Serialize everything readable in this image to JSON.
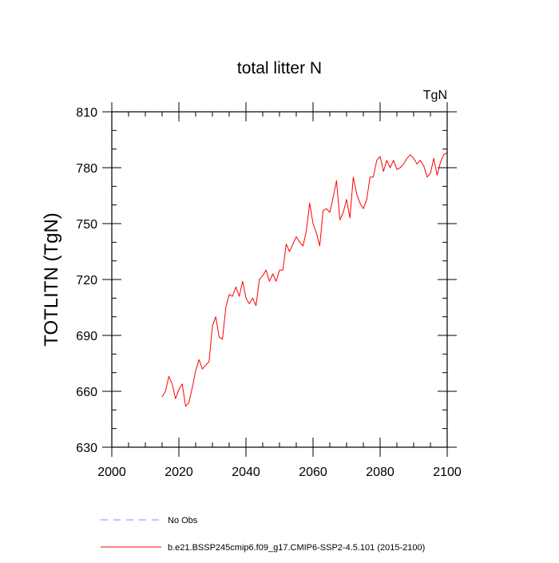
{
  "chart_data": {
    "type": "line",
    "title": "total litter N",
    "units": "TgN",
    "ylabel": "TOTLITN  (TgN)",
    "xlabel": "",
    "xlim": [
      2000,
      2100
    ],
    "ylim": [
      630,
      810
    ],
    "xticks": [
      2000,
      2020,
      2040,
      2060,
      2080,
      2100
    ],
    "yticks": [
      630,
      660,
      690,
      720,
      750,
      780,
      810
    ],
    "x_minor_step": 5,
    "y_minor_step": 10,
    "grid": false,
    "legend_position": "bottom",
    "series": [
      {
        "name": "b.e21.BSSP245cmip6.f09_g17.CMIP6-SSP2-4.5.101 (2015-2100)",
        "color": "#ff0000",
        "style": "solid",
        "x": [
          2015,
          2016,
          2017,
          2018,
          2019,
          2020,
          2021,
          2022,
          2023,
          2024,
          2025,
          2026,
          2027,
          2028,
          2029,
          2030,
          2031,
          2032,
          2033,
          2034,
          2035,
          2036,
          2037,
          2038,
          2039,
          2040,
          2041,
          2042,
          2043,
          2044,
          2045,
          2046,
          2047,
          2048,
          2049,
          2050,
          2051,
          2052,
          2053,
          2054,
          2055,
          2056,
          2057,
          2058,
          2059,
          2060,
          2061,
          2062,
          2063,
          2064,
          2065,
          2066,
          2067,
          2068,
          2069,
          2070,
          2071,
          2072,
          2073,
          2074,
          2075,
          2076,
          2077,
          2078,
          2079,
          2080,
          2081,
          2082,
          2083,
          2084,
          2085,
          2086,
          2087,
          2088,
          2089,
          2090,
          2091,
          2092,
          2093,
          2094,
          2095,
          2096,
          2097,
          2098,
          2099,
          2100
        ],
        "values": [
          657,
          660,
          668,
          664,
          656,
          661,
          664,
          652,
          654,
          662,
          671,
          677,
          672,
          674,
          676,
          695,
          700,
          689,
          688,
          705,
          712,
          711,
          716,
          711,
          719,
          710,
          707,
          710,
          706,
          720,
          722,
          725,
          719,
          723,
          719,
          725,
          725,
          739,
          735,
          739,
          743,
          740,
          738,
          746,
          761,
          750,
          745,
          738,
          757,
          758,
          756,
          764,
          773,
          752,
          756,
          763,
          753,
          775,
          766,
          761,
          758,
          763,
          775,
          775,
          784,
          786,
          778,
          784,
          780,
          784,
          779,
          780,
          782,
          785,
          787,
          785,
          782,
          784,
          781,
          775,
          777,
          785,
          776,
          783,
          787,
          788
        ]
      },
      {
        "name": "No Obs",
        "color": "#8888ff",
        "style": "dashed",
        "x": [],
        "values": []
      }
    ]
  }
}
